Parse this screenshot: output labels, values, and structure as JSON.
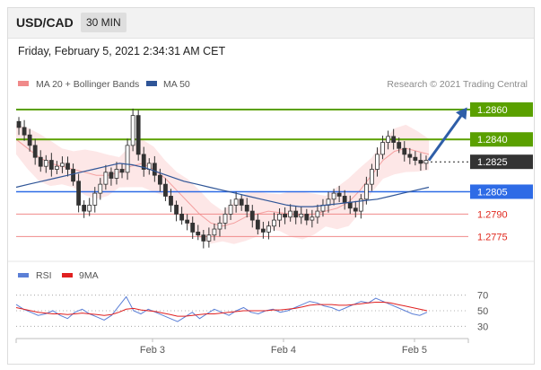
{
  "header": {
    "pair": "USD/CAD",
    "timeframe": "30 MIN"
  },
  "datetime": "Friday, February 5, 2021 2:34:31 AM CET",
  "legend": {
    "bollinger": {
      "label": "MA 20 + Bollinger Bands",
      "color": "#f08a8a"
    },
    "ma50": {
      "label": "MA 50",
      "color": "#2f5597"
    }
  },
  "copyright": "Research © 2021 Trading Central",
  "rsi_legend": {
    "rsi": {
      "label": "RSI",
      "color": "#5b7fd6"
    },
    "ma9": {
      "label": "9MA",
      "color": "#e02020"
    }
  },
  "chart_data": [
    {
      "type": "candlestick",
      "title": "USD/CAD 30 MIN",
      "ylim": [
        1.2762,
        1.2872
      ],
      "levels": [
        {
          "value": 1.286,
          "label": "1.2860",
          "kind": "resistance"
        },
        {
          "value": 1.284,
          "label": "1.2840",
          "kind": "resistance"
        },
        {
          "value": 1.2825,
          "label": "1.2825",
          "kind": "last"
        },
        {
          "value": 1.2805,
          "label": "1.2805",
          "kind": "pivot"
        },
        {
          "value": 1.279,
          "label": "1.2790",
          "kind": "support"
        },
        {
          "value": 1.2775,
          "label": "1.2775",
          "kind": "support"
        }
      ],
      "x_ticks": [
        "Feb 3",
        "Feb 4",
        "Feb 5"
      ],
      "close_path": [
        1.2848,
        1.2843,
        1.2836,
        1.2828,
        1.2822,
        1.2826,
        1.282,
        1.2822,
        1.2824,
        1.282,
        1.2812,
        1.2796,
        1.2792,
        1.2796,
        1.2804,
        1.281,
        1.2818,
        1.2814,
        1.282,
        1.2818,
        1.2836,
        1.2856,
        1.283,
        1.282,
        1.2824,
        1.2816,
        1.281,
        1.2802,
        1.2796,
        1.279,
        1.2786,
        1.2784,
        1.2778,
        1.2776,
        1.2772,
        1.2776,
        1.278,
        1.2784,
        1.279,
        1.2796,
        1.28,
        1.2796,
        1.2792,
        1.2786,
        1.278,
        1.2778,
        1.2782,
        1.2786,
        1.279,
        1.2788,
        1.2792,
        1.2788,
        1.279,
        1.2786,
        1.2788,
        1.2792,
        1.2796,
        1.28,
        1.2804,
        1.2802,
        1.2798,
        1.2794,
        1.2792,
        1.28,
        1.281,
        1.282,
        1.283,
        1.2838,
        1.2842,
        1.2838,
        1.2834,
        1.283,
        1.2828,
        1.2826,
        1.2824,
        1.2826
      ],
      "ma50": [
        1.2808,
        1.281,
        1.2812,
        1.2814,
        1.2816,
        1.2818,
        1.282,
        1.2822,
        1.2824,
        1.2823,
        1.2821,
        1.2818,
        1.2815,
        1.2812,
        1.281,
        1.2808,
        1.2806,
        1.2804,
        1.2802,
        1.28,
        1.2798,
        1.2796,
        1.2795,
        1.2795,
        1.2796,
        1.2797,
        1.2798,
        1.2799,
        1.28,
        1.2802,
        1.2804,
        1.2806,
        1.2808
      ],
      "bb_mid": [
        1.284,
        1.2834,
        1.2828,
        1.2824,
        1.2822,
        1.282,
        1.2818,
        1.2816,
        1.2816,
        1.2818,
        1.2822,
        1.2824,
        1.282,
        1.2814,
        1.2806,
        1.2798,
        1.279,
        1.2784,
        1.2782,
        1.2784,
        1.2788,
        1.279,
        1.2792,
        1.2791,
        1.279,
        1.2789,
        1.279,
        1.2792,
        1.2794,
        1.2798,
        1.2806,
        1.2816,
        1.2826,
        1.2832,
        1.2834,
        1.2832,
        1.283
      ],
      "forecast_target": 1.286
    },
    {
      "type": "line",
      "title": "RSI",
      "ylim": [
        20,
        80
      ],
      "y_ticks": [
        70,
        50,
        30
      ],
      "series": [
        {
          "name": "RSI",
          "values": [
            58,
            52,
            48,
            44,
            46,
            50,
            44,
            40,
            48,
            52,
            46,
            42,
            38,
            44,
            56,
            68,
            50,
            46,
            52,
            48,
            44,
            40,
            36,
            42,
            48,
            40,
            46,
            52,
            48,
            44,
            50,
            54,
            48,
            46,
            50,
            52,
            48,
            50,
            54,
            58,
            62,
            60,
            56,
            54,
            50,
            54,
            58,
            62,
            60,
            66,
            62,
            58,
            54,
            50,
            46,
            44,
            48
          ]
        },
        {
          "name": "9MA",
          "values": [
            54,
            52,
            50,
            48,
            47,
            46,
            46,
            45,
            46,
            47,
            46,
            45,
            44,
            45,
            48,
            52,
            53,
            51,
            50,
            49,
            47,
            45,
            43,
            43,
            44,
            45,
            46,
            46,
            47,
            48,
            49,
            50,
            50,
            50,
            50,
            51,
            51,
            52,
            53,
            55,
            57,
            58,
            58,
            58,
            57,
            57,
            58,
            59,
            60,
            61,
            61,
            60,
            58,
            56,
            54,
            52,
            50
          ]
        }
      ]
    }
  ]
}
